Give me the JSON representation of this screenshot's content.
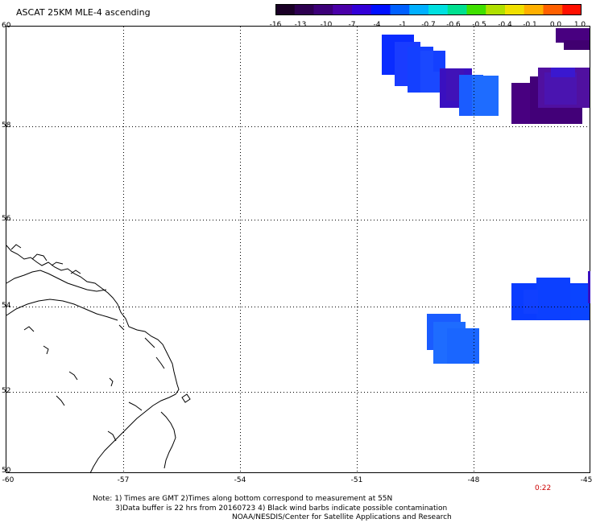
{
  "title": "ASCAT 25KM MLE-4 ascending",
  "colorbar": {
    "labels": [
      "-16",
      "-13",
      "-10",
      "-7",
      "-4",
      "-1",
      "-0.7",
      "-0.6",
      "-0.5",
      "-0.4",
      "-0.1",
      "0.0",
      "1.0"
    ],
    "colors": [
      "#1a0026",
      "#2d0050",
      "#3c0078",
      "#4a00a8",
      "#3300d8",
      "#0010ff",
      "#0060ff",
      "#00b0ff",
      "#00e0e0",
      "#00e090",
      "#40e000",
      "#b0e000",
      "#f0e000",
      "#ffb000",
      "#ff6000",
      "#ff1000"
    ]
  },
  "lat_labels": [
    "60",
    "58",
    "56",
    "54",
    "52",
    "50"
  ],
  "lon_labels": [
    "-60",
    "-57",
    "-54",
    "-51",
    "-48",
    "-45"
  ],
  "time_label": "0:22",
  "time_color": "#cc0000",
  "notes": [
    "Note: 1) Times are GMT 2)Times along bottom correspond to measurement at 55N",
    "3)Data buffer is 22 hrs from 20160723 4) Black wind barbs indicate possible contamination",
    "NOAA/NESDIS/Center for Satellite Applications and Research"
  ],
  "colors": {
    "blue": "#0a2cff",
    "light_blue": "#1a55ff",
    "sky_blue": "#1e6cff",
    "indigo": "#3a10c0",
    "dark_purple": "#480080",
    "deep_purple": "#400070"
  }
}
